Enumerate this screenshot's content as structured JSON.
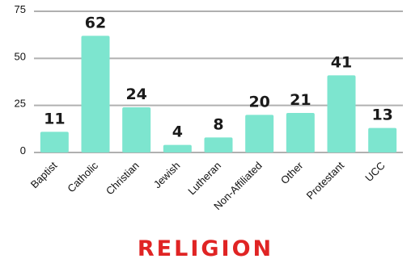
{
  "chart_data": {
    "type": "bar",
    "title": "RELIGION",
    "categories": [
      "Baptist",
      "Catholic",
      "Christian",
      "Jewish",
      "Lutheran",
      "Non-Affiliated",
      "Other",
      "Protestant",
      "UCC"
    ],
    "values": [
      11,
      62,
      24,
      4,
      8,
      20,
      21,
      41,
      13
    ],
    "xlabel": "",
    "ylabel": "",
    "ylim": [
      0,
      75
    ],
    "yticks": [
      0,
      25,
      50,
      75
    ],
    "grid": true,
    "legend": "none",
    "bar_color": "#7de5cf",
    "title_color": "#e02424",
    "grid_color": "#b0b0b0"
  }
}
